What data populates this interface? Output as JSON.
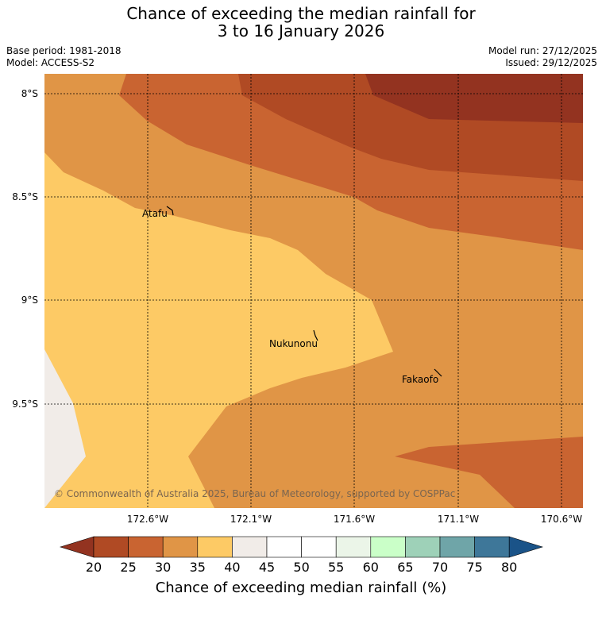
{
  "header": {
    "title_line1": "Chance of exceeding the median rainfall for",
    "title_line2": "3 to 16 January 2026",
    "base_period": "Base period: 1981-2018",
    "model": "Model: ACCESS-S2",
    "model_run": "Model run: 27/12/2025",
    "issued": "Issued: 29/12/2025"
  },
  "map": {
    "lat_labels": [
      "8°S",
      "8.5°S",
      "9°S",
      "9.5°S"
    ],
    "lon_labels": [
      "172.6°W",
      "172.1°W",
      "171.6°W",
      "171.1°W",
      "170.6°W"
    ],
    "places": [
      {
        "name": "Atafu"
      },
      {
        "name": "Nukunonu"
      },
      {
        "name": "Fakaofo"
      }
    ],
    "copyright": "© Commonwealth of Australia 2025, Bureau of Meteorology, supported by COSPPac"
  },
  "colorbar": {
    "ticks": [
      "20",
      "25",
      "30",
      "35",
      "40",
      "45",
      "50",
      "55",
      "60",
      "65",
      "70",
      "75",
      "80"
    ],
    "label": "Chance of exceeding median rainfall (%)",
    "colors": [
      "#933320",
      "#b04a24",
      "#c96431",
      "#e09546",
      "#fdca65",
      "#f1ece8",
      "#ffffff",
      "#ffffff",
      "#ebf5e8",
      "#caffc8",
      "#9ed1b8",
      "#6fa5a8",
      "#3e7799",
      "#1a5388"
    ]
  },
  "palette": {
    "p20": "#933320",
    "p25": "#b04a24",
    "p30": "#c96431",
    "p35": "#e09546",
    "p40": "#fdca65",
    "p45": "#f1ece8"
  }
}
